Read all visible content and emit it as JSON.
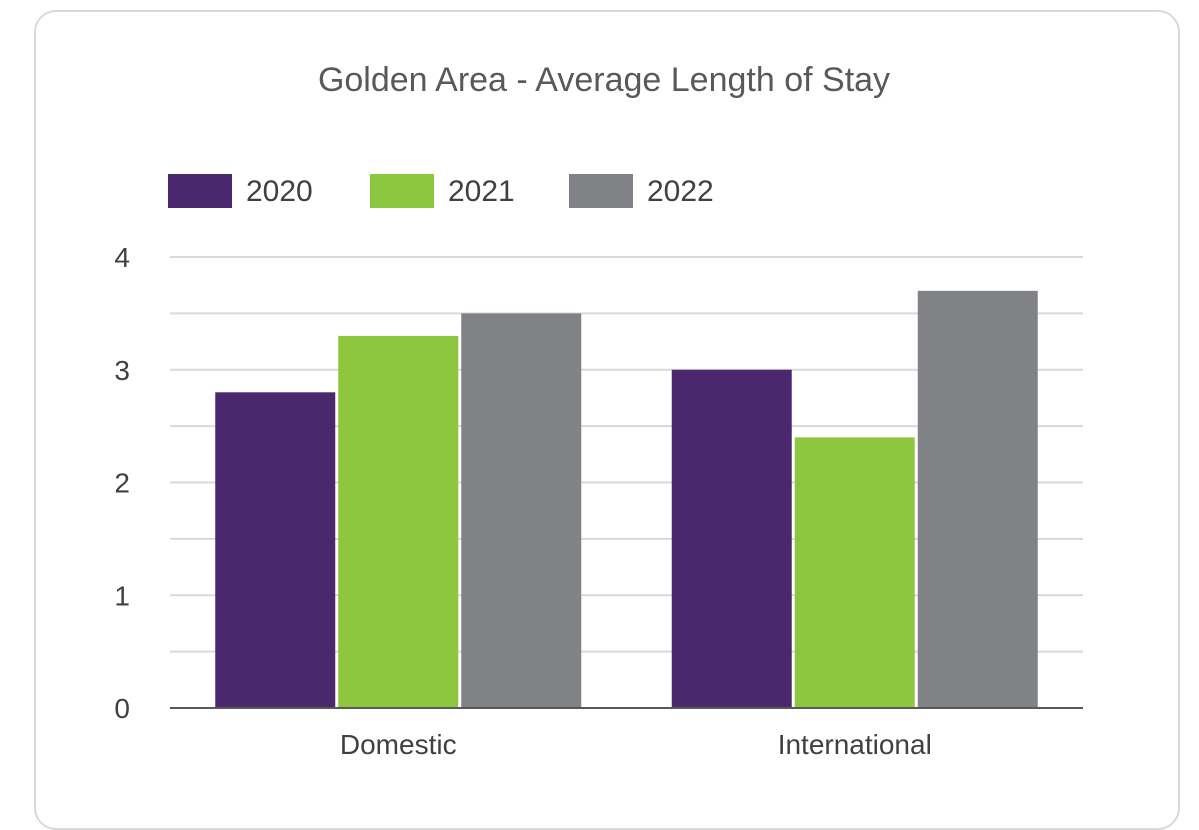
{
  "chart_data": {
    "type": "bar",
    "title": "Golden Area - Average Length of Stay",
    "xlabel": "",
    "ylabel": "",
    "categories": [
      "Domestic",
      "International"
    ],
    "series": [
      {
        "name": "2020",
        "color": "#4b286d",
        "values": [
          2.8,
          3.0
        ]
      },
      {
        "name": "2021",
        "color": "#8dc63f",
        "values": [
          3.3,
          2.4
        ]
      },
      {
        "name": "2022",
        "color": "#808285",
        "values": [
          3.5,
          3.7
        ]
      }
    ],
    "ylim": [
      0,
      4
    ],
    "yticks": [
      0,
      1,
      2,
      3,
      4
    ],
    "grid": true,
    "legend": "top-left"
  }
}
